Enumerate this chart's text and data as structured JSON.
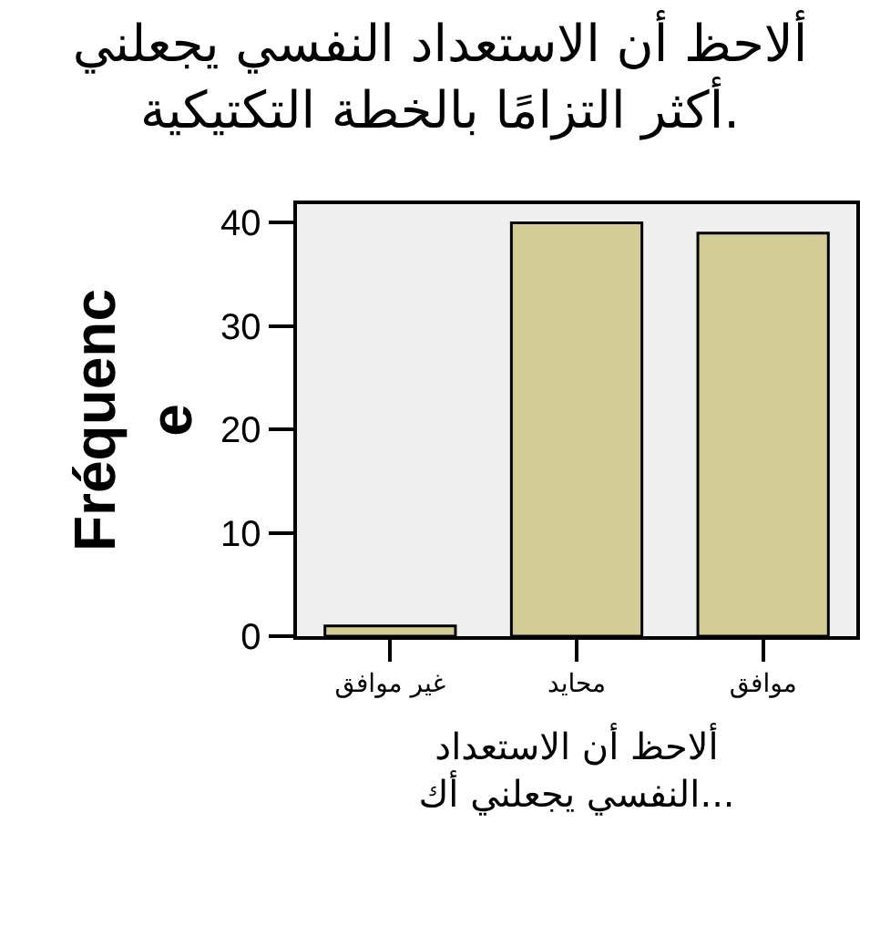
{
  "chart_data": {
    "type": "bar",
    "title": "ألاحظ أن الاستعداد النفسي يجعلني\nأكثر التزامًا بالخطة التكتيكية.",
    "xlabel": "ألاحظ أن الاستعداد\nالنفسي يجعلني أك...",
    "ylabel": "Fréquenc\ne",
    "categories": [
      "غير موافق",
      "محايد",
      "موافق"
    ],
    "values": [
      1,
      40,
      39
    ],
    "color": "#d3cd95",
    "ylim": [
      0,
      41.8
    ],
    "yticks": [
      0,
      10,
      20,
      30,
      40
    ]
  }
}
